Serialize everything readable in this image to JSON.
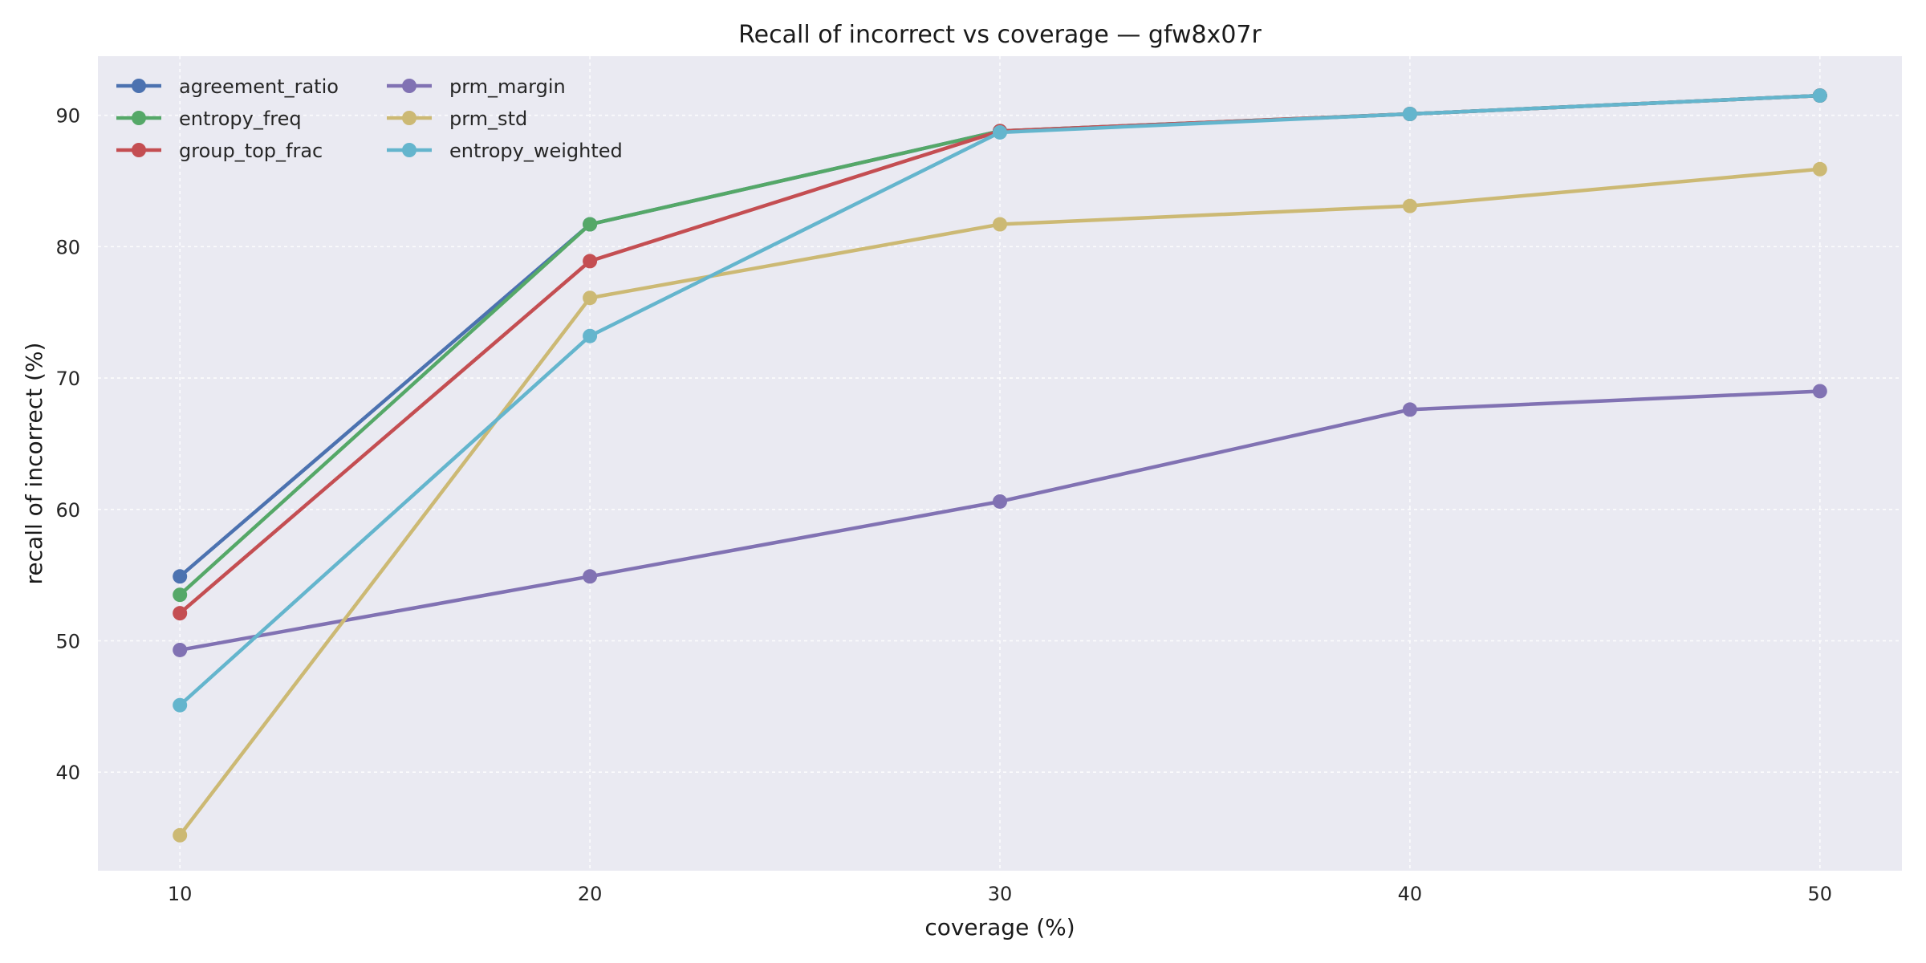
{
  "chart_data": {
    "type": "line",
    "title": "Recall of incorrect vs coverage — gfw8x07r",
    "xlabel": "coverage (%)",
    "ylabel": "recall of incorrect (%)",
    "x": [
      10,
      20,
      30,
      40,
      50
    ],
    "xlim": [
      8,
      52
    ],
    "ylim": [
      32.5,
      94.5
    ],
    "xticks": [
      10,
      20,
      30,
      40,
      50
    ],
    "yticks": [
      40,
      50,
      60,
      70,
      80,
      90
    ],
    "grid": true,
    "background": "#eaeaf2",
    "legend": {
      "placement": "top-left",
      "columns": 2
    },
    "series": [
      {
        "name": "agreement_ratio",
        "color": "#4c72b0",
        "values": [
          54.9,
          81.7,
          88.8,
          90.1,
          91.5
        ]
      },
      {
        "name": "entropy_freq",
        "color": "#55a868",
        "values": [
          53.5,
          81.7,
          88.8,
          90.1,
          91.5
        ]
      },
      {
        "name": "group_top_frac",
        "color": "#c44e52",
        "values": [
          52.1,
          78.9,
          88.8,
          90.1,
          91.5
        ]
      },
      {
        "name": "prm_margin",
        "color": "#8172b3",
        "values": [
          49.3,
          54.9,
          60.6,
          67.6,
          69.0
        ]
      },
      {
        "name": "prm_std",
        "color": "#ccb974",
        "values": [
          35.2,
          76.1,
          81.7,
          83.1,
          85.9
        ]
      },
      {
        "name": "entropy_weighted",
        "color": "#64b5cd",
        "values": [
          45.1,
          73.2,
          88.7,
          90.1,
          91.5
        ]
      }
    ]
  }
}
